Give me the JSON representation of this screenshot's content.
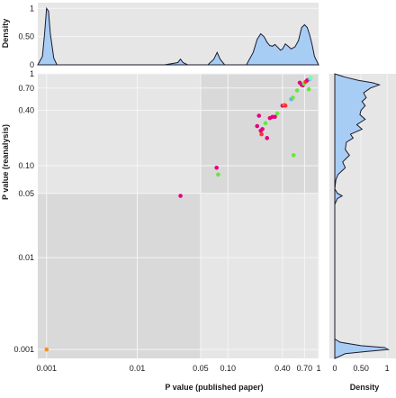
{
  "chart_data": {
    "type": "scatter",
    "scale": "log",
    "x_axis": {
      "label": "P value (published paper)",
      "range": [
        0.0008,
        1.0
      ],
      "ticks": [
        {
          "value": 0.001,
          "label": "0.001"
        },
        {
          "value": 0.01,
          "label": "0.01"
        },
        {
          "value": 0.05,
          "label": "0.05"
        },
        {
          "value": 0.1,
          "label": "0.10"
        },
        {
          "value": 0.4,
          "label": "0.40"
        },
        {
          "value": 0.7,
          "label": "0.70"
        },
        {
          "value": 1.0,
          "label": "1"
        }
      ]
    },
    "y_axis": {
      "label": "P value (reanalysis)",
      "range": [
        0.0008,
        1.0
      ],
      "ticks": [
        {
          "value": 0.001,
          "label": "0.001"
        },
        {
          "value": 0.01,
          "label": "0.01"
        },
        {
          "value": 0.05,
          "label": "0.05"
        },
        {
          "value": 0.1,
          "label": "0.10"
        },
        {
          "value": 0.4,
          "label": "0.40"
        },
        {
          "value": 0.7,
          "label": "0.70"
        },
        {
          "value": 1.0,
          "label": "1"
        }
      ]
    },
    "threshold": 0.05,
    "points": [
      {
        "x": 0.001,
        "y": 0.001,
        "color": "#ff8c1a"
      },
      {
        "x": 0.03,
        "y": 0.047,
        "color": "#e6007e"
      },
      {
        "x": 0.075,
        "y": 0.095,
        "color": "#e6007e"
      },
      {
        "x": 0.078,
        "y": 0.08,
        "color": "#66e640"
      },
      {
        "x": 0.21,
        "y": 0.27,
        "color": "#e6007e"
      },
      {
        "x": 0.22,
        "y": 0.35,
        "color": "#e6007e"
      },
      {
        "x": 0.23,
        "y": 0.24,
        "color": "#e6007e"
      },
      {
        "x": 0.235,
        "y": 0.22,
        "color": "#ff3030"
      },
      {
        "x": 0.24,
        "y": 0.25,
        "color": "#e6007e"
      },
      {
        "x": 0.26,
        "y": 0.29,
        "color": "#66e640"
      },
      {
        "x": 0.27,
        "y": 0.2,
        "color": "#e6007e"
      },
      {
        "x": 0.29,
        "y": 0.33,
        "color": "#e6007e"
      },
      {
        "x": 0.31,
        "y": 0.34,
        "color": "#e6007e"
      },
      {
        "x": 0.33,
        "y": 0.34,
        "color": "#e6007e"
      },
      {
        "x": 0.35,
        "y": 0.37,
        "color": "#66e640"
      },
      {
        "x": 0.4,
        "y": 0.45,
        "color": "#e6007e"
      },
      {
        "x": 0.42,
        "y": 0.46,
        "color": "#ff8c1a"
      },
      {
        "x": 0.43,
        "y": 0.45,
        "color": "#ff3030"
      },
      {
        "x": 0.5,
        "y": 0.53,
        "color": "#5ab4f0"
      },
      {
        "x": 0.52,
        "y": 0.55,
        "color": "#66e640"
      },
      {
        "x": 0.53,
        "y": 0.13,
        "color": "#66e640"
      },
      {
        "x": 0.58,
        "y": 0.66,
        "color": "#66e640"
      },
      {
        "x": 0.62,
        "y": 0.8,
        "color": "#e6007e"
      },
      {
        "x": 0.65,
        "y": 0.76,
        "color": "#e6007e"
      },
      {
        "x": 0.67,
        "y": 0.75,
        "color": "#e6007e"
      },
      {
        "x": 0.69,
        "y": 0.78,
        "color": "#66e640"
      },
      {
        "x": 0.72,
        "y": 0.82,
        "color": "#ff3030"
      },
      {
        "x": 0.75,
        "y": 0.85,
        "color": "#e6007e"
      },
      {
        "x": 0.78,
        "y": 0.68,
        "color": "#66e640"
      },
      {
        "x": 0.8,
        "y": 0.88,
        "color": "#5ab4f0"
      },
      {
        "x": 0.82,
        "y": 0.9,
        "color": "#7dffa0"
      }
    ],
    "top_density": {
      "ylabel": "Density",
      "ticks": [
        {
          "value": 0,
          "label": "0"
        },
        {
          "value": 0.5,
          "label": "0.50"
        },
        {
          "value": 1,
          "label": "1"
        }
      ],
      "ylim": [
        0,
        1.1
      ],
      "fill": "#a8cdf5",
      "curve": [
        [
          0.0008,
          0.0
        ],
        [
          0.0009,
          0.15
        ],
        [
          0.00095,
          0.55
        ],
        [
          0.001,
          1.0
        ],
        [
          0.00105,
          0.95
        ],
        [
          0.0011,
          0.55
        ],
        [
          0.0012,
          0.12
        ],
        [
          0.0013,
          0.0
        ],
        [
          0.02,
          0.0
        ],
        [
          0.028,
          0.04
        ],
        [
          0.03,
          0.1
        ],
        [
          0.032,
          0.04
        ],
        [
          0.036,
          0.0
        ],
        [
          0.06,
          0.0
        ],
        [
          0.07,
          0.1
        ],
        [
          0.076,
          0.22
        ],
        [
          0.082,
          0.1
        ],
        [
          0.092,
          0.0
        ],
        [
          0.16,
          0.0
        ],
        [
          0.19,
          0.22
        ],
        [
          0.21,
          0.45
        ],
        [
          0.23,
          0.55
        ],
        [
          0.25,
          0.5
        ],
        [
          0.27,
          0.4
        ],
        [
          0.29,
          0.34
        ],
        [
          0.31,
          0.33
        ],
        [
          0.33,
          0.36
        ],
        [
          0.35,
          0.32
        ],
        [
          0.38,
          0.26
        ],
        [
          0.4,
          0.28
        ],
        [
          0.43,
          0.37
        ],
        [
          0.46,
          0.33
        ],
        [
          0.5,
          0.28
        ],
        [
          0.55,
          0.32
        ],
        [
          0.6,
          0.43
        ],
        [
          0.65,
          0.66
        ],
        [
          0.7,
          0.71
        ],
        [
          0.75,
          0.66
        ],
        [
          0.8,
          0.52
        ],
        [
          0.85,
          0.35
        ],
        [
          0.9,
          0.15
        ],
        [
          1.0,
          0.0
        ]
      ]
    },
    "right_density": {
      "xlabel": "Density",
      "ticks": [
        {
          "value": 0,
          "label": "0"
        },
        {
          "value": 0.5,
          "label": "0.50"
        },
        {
          "value": 1,
          "label": "1"
        }
      ],
      "xlim": [
        0,
        1.1
      ],
      "fill": "#a8cdf5",
      "curve": [
        [
          0.0008,
          0.0
        ],
        [
          0.0009,
          0.2
        ],
        [
          0.00095,
          0.6
        ],
        [
          0.001,
          1.02
        ],
        [
          0.00105,
          0.95
        ],
        [
          0.0011,
          0.5
        ],
        [
          0.0012,
          0.1
        ],
        [
          0.0013,
          0.0
        ],
        [
          0.038,
          0.0
        ],
        [
          0.044,
          0.05
        ],
        [
          0.047,
          0.14
        ],
        [
          0.05,
          0.05
        ],
        [
          0.056,
          0.0
        ],
        [
          0.07,
          0.02
        ],
        [
          0.08,
          0.06
        ],
        [
          0.095,
          0.2
        ],
        [
          0.11,
          0.15
        ],
        [
          0.13,
          0.28
        ],
        [
          0.15,
          0.2
        ],
        [
          0.18,
          0.22
        ],
        [
          0.2,
          0.35
        ],
        [
          0.22,
          0.3
        ],
        [
          0.25,
          0.52
        ],
        [
          0.28,
          0.42
        ],
        [
          0.32,
          0.58
        ],
        [
          0.36,
          0.48
        ],
        [
          0.4,
          0.5
        ],
        [
          0.45,
          0.58
        ],
        [
          0.5,
          0.52
        ],
        [
          0.55,
          0.6
        ],
        [
          0.62,
          0.55
        ],
        [
          0.7,
          0.68
        ],
        [
          0.76,
          0.85
        ],
        [
          0.8,
          0.72
        ],
        [
          0.85,
          0.45
        ],
        [
          0.92,
          0.2
        ],
        [
          1.0,
          0.0
        ]
      ]
    }
  }
}
